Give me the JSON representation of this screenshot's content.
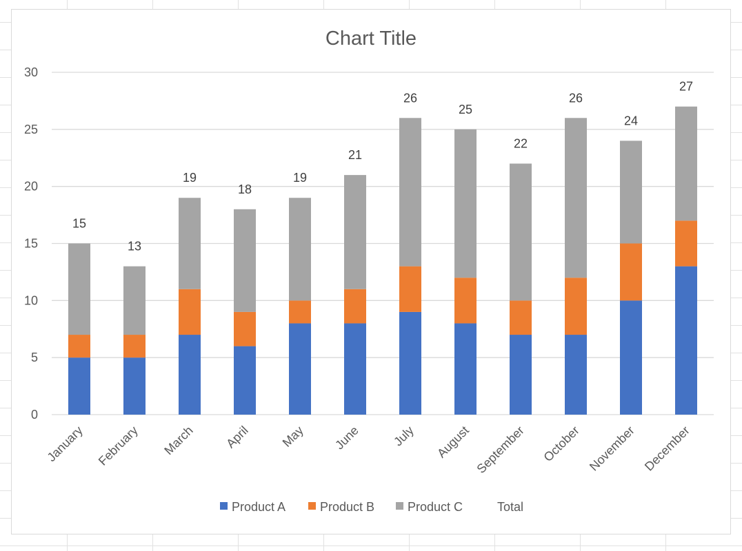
{
  "chart_data": {
    "type": "bar",
    "stacked": true,
    "title": "Chart Title",
    "categories": [
      "January",
      "February",
      "March",
      "April",
      "May",
      "June",
      "July",
      "August",
      "September",
      "October",
      "November",
      "December"
    ],
    "series": [
      {
        "name": "Product A",
        "color": "#4472C4",
        "values": [
          5,
          5,
          7,
          6,
          8,
          8,
          9,
          8,
          7,
          7,
          10,
          13
        ]
      },
      {
        "name": "Product B",
        "color": "#ED7D31",
        "values": [
          2,
          2,
          4,
          3,
          2,
          3,
          4,
          4,
          3,
          5,
          5,
          4
        ]
      },
      {
        "name": "Product C",
        "color": "#A5A5A5",
        "values": [
          8,
          6,
          8,
          9,
          9,
          10,
          13,
          13,
          12,
          14,
          9,
          10
        ]
      }
    ],
    "total": {
      "name": "Total",
      "values": [
        15,
        13,
        19,
        18,
        19,
        21,
        26,
        25,
        22,
        26,
        24,
        27
      ]
    },
    "ylim": [
      0,
      30
    ],
    "yticks": [
      0,
      5,
      10,
      15,
      20,
      25,
      30
    ],
    "grid": true,
    "legend_position": "bottom",
    "gridline_color": "#d9d9d9"
  }
}
